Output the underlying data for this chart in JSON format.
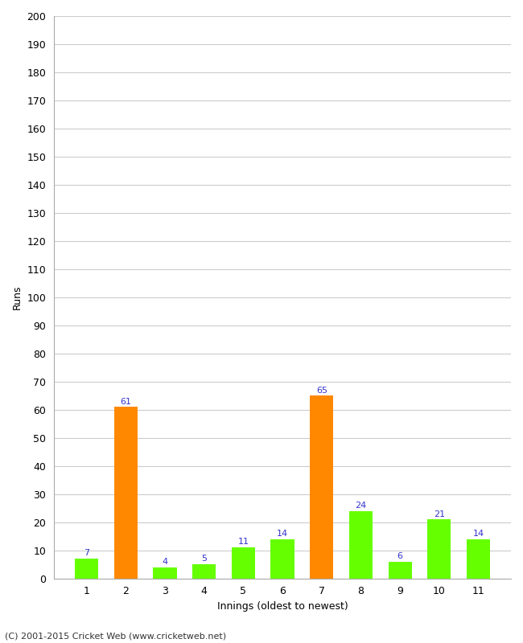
{
  "innings": [
    1,
    2,
    3,
    4,
    5,
    6,
    7,
    8,
    9,
    10,
    11
  ],
  "values": [
    7,
    61,
    4,
    5,
    11,
    14,
    65,
    24,
    6,
    21,
    14
  ],
  "bar_colors": [
    "#66ff00",
    "#ff8800",
    "#66ff00",
    "#66ff00",
    "#66ff00",
    "#66ff00",
    "#ff8800",
    "#66ff00",
    "#66ff00",
    "#66ff00",
    "#66ff00"
  ],
  "label_color": "#3333cc",
  "xlabel": "Innings (oldest to newest)",
  "ylabel": "Runs",
  "ylim": [
    0,
    200
  ],
  "yticks": [
    0,
    10,
    20,
    30,
    40,
    50,
    60,
    70,
    80,
    90,
    100,
    110,
    120,
    130,
    140,
    150,
    160,
    170,
    180,
    190,
    200
  ],
  "footer": "(C) 2001-2015 Cricket Web (www.cricketweb.net)",
  "background_color": "#ffffff",
  "plot_bg_color": "#ffffff",
  "bar_width": 0.6,
  "grid_color": "#cccccc",
  "label_fontsize": 8,
  "axis_fontsize": 9
}
